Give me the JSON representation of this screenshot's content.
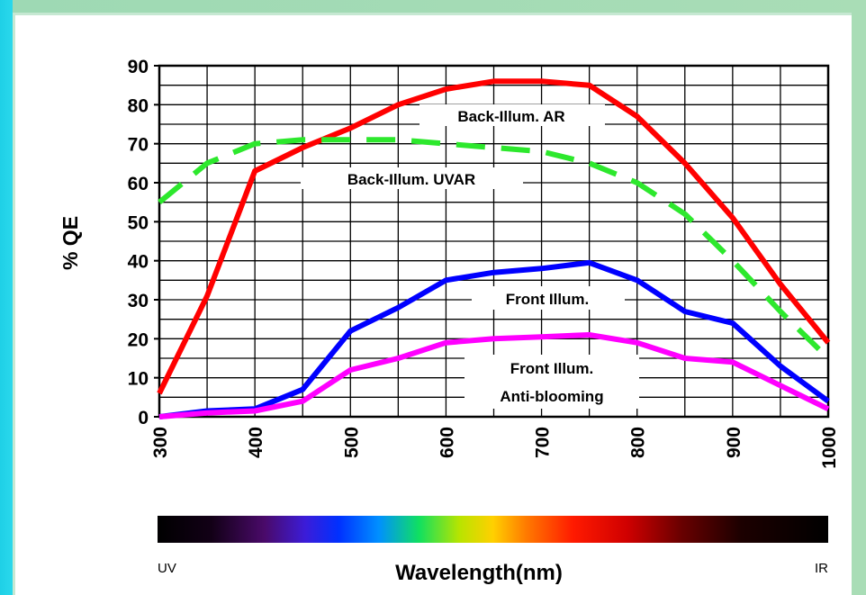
{
  "chart_data": {
    "type": "line",
    "title": "",
    "xlabel": "Wavelength(nm)",
    "ylabel": "% QE",
    "xlim": [
      300,
      1000
    ],
    "ylim": [
      0,
      90
    ],
    "x_ticks": [
      "300",
      "400",
      "500",
      "600",
      "700",
      "800",
      "900",
      "1000"
    ],
    "y_ticks": [
      "0",
      "10",
      "20",
      "30",
      "40",
      "50",
      "60",
      "70",
      "80",
      "90"
    ],
    "grid": true,
    "spectrum_bar": {
      "left_label": "UV",
      "right_label": "IR"
    },
    "series": [
      {
        "name": "Back-Illum. AR",
        "color": "#ff0000",
        "dash": false,
        "x": [
          300,
          350,
          400,
          450,
          500,
          550,
          600,
          650,
          700,
          750,
          800,
          850,
          900,
          950,
          1000
        ],
        "y": [
          6,
          31,
          63,
          69,
          74,
          80,
          84,
          86,
          86,
          85,
          77,
          65,
          51,
          34,
          19
        ]
      },
      {
        "name": "Back-Illum. UVAR",
        "color": "#2de82d",
        "dash": true,
        "x": [
          300,
          350,
          400,
          450,
          500,
          550,
          600,
          650,
          700,
          750,
          800,
          850,
          900,
          950,
          1000
        ],
        "y": [
          55,
          65,
          70,
          71,
          71,
          71,
          70,
          69,
          68,
          65,
          60,
          52,
          40,
          27,
          15
        ]
      },
      {
        "name": "Front Illum.",
        "color": "#0000ff",
        "dash": false,
        "x": [
          300,
          350,
          400,
          450,
          500,
          550,
          600,
          650,
          700,
          750,
          800,
          850,
          900,
          950,
          1000
        ],
        "y": [
          0,
          1.5,
          2,
          7,
          22,
          28,
          35,
          37,
          38,
          39.5,
          35,
          27,
          24,
          13,
          4
        ]
      },
      {
        "name": "Front Illum. Anti-blooming",
        "color": "#ff00ff",
        "dash": false,
        "x": [
          300,
          350,
          400,
          450,
          500,
          550,
          600,
          650,
          700,
          750,
          800,
          850,
          900,
          950,
          1000
        ],
        "y": [
          0,
          1,
          1.5,
          4,
          12,
          15,
          19,
          20,
          20.5,
          21,
          19,
          15,
          14,
          8,
          2
        ]
      }
    ],
    "annotations": [
      {
        "text": "Back-Illum.  AR"
      },
      {
        "text": "Back-Illum.  UVAR"
      },
      {
        "text": "Front Illum."
      },
      {
        "text": "Front Illum."
      },
      {
        "text": "Anti-blooming"
      }
    ]
  }
}
